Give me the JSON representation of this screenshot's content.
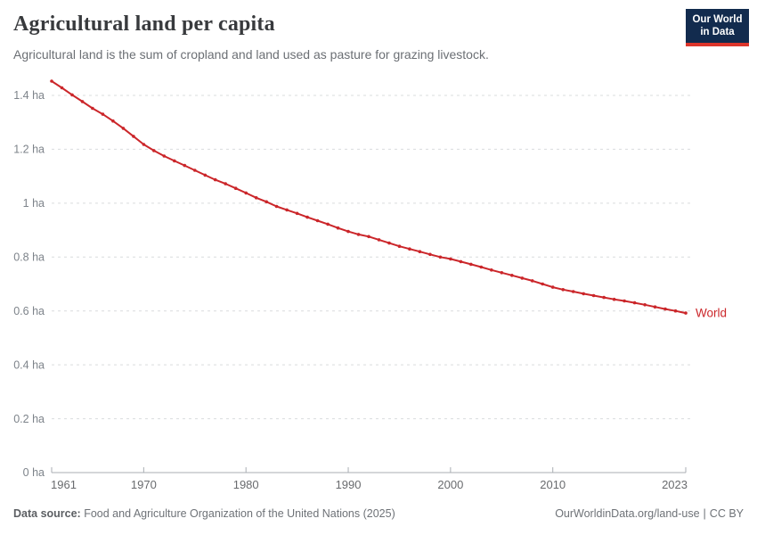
{
  "header": {
    "title": "Agricultural land per capita",
    "subtitle": "Agricultural land is the sum of cropland and land used as pasture for grazing livestock."
  },
  "logo": {
    "line1": "Our World",
    "line2": "in Data"
  },
  "chart_data": {
    "type": "line",
    "title": "Agricultural land per capita",
    "xlabel": "",
    "ylabel": "",
    "xlim": [
      1961,
      2023
    ],
    "ylim": [
      0,
      1.45
    ],
    "grid": "horizontal-dashed",
    "legend_position": "end-of-line-label",
    "yticks": [
      0,
      0.2,
      0.4,
      0.6,
      0.8,
      1,
      1.2,
      1.4
    ],
    "ytick_labels": [
      "0 ha",
      "0.2 ha",
      "0.4 ha",
      "0.6 ha",
      "0.8 ha",
      "1 ha",
      "1.2 ha",
      "1.4 ha"
    ],
    "xticks": [
      1961,
      1970,
      1980,
      1990,
      2000,
      2010,
      2023
    ],
    "xtick_labels": [
      "1961",
      "1970",
      "1980",
      "1990",
      "2000",
      "2010",
      "2023"
    ],
    "x": [
      1961,
      1962,
      1963,
      1964,
      1965,
      1966,
      1967,
      1968,
      1969,
      1970,
      1971,
      1972,
      1973,
      1974,
      1975,
      1976,
      1977,
      1978,
      1979,
      1980,
      1981,
      1982,
      1983,
      1984,
      1985,
      1986,
      1987,
      1988,
      1989,
      1990,
      1991,
      1992,
      1993,
      1994,
      1995,
      1996,
      1997,
      1998,
      1999,
      2000,
      2001,
      2002,
      2003,
      2004,
      2005,
      2006,
      2007,
      2008,
      2009,
      2010,
      2011,
      2012,
      2013,
      2014,
      2015,
      2016,
      2017,
      2018,
      2019,
      2020,
      2021,
      2022,
      2023
    ],
    "series": [
      {
        "name": "World",
        "color": "#cb262a",
        "values": [
          1.453,
          1.428,
          1.402,
          1.377,
          1.352,
          1.33,
          1.305,
          1.278,
          1.248,
          1.218,
          1.195,
          1.175,
          1.157,
          1.14,
          1.122,
          1.104,
          1.087,
          1.072,
          1.055,
          1.038,
          1.02,
          1.005,
          0.988,
          0.975,
          0.962,
          0.948,
          0.935,
          0.922,
          0.908,
          0.895,
          0.884,
          0.876,
          0.864,
          0.852,
          0.84,
          0.83,
          0.82,
          0.81,
          0.8,
          0.793,
          0.783,
          0.773,
          0.763,
          0.752,
          0.742,
          0.732,
          0.722,
          0.712,
          0.7,
          0.688,
          0.679,
          0.672,
          0.664,
          0.657,
          0.65,
          0.643,
          0.637,
          0.63,
          0.623,
          0.615,
          0.607,
          0.6,
          0.592
        ]
      }
    ]
  },
  "footer": {
    "source_label": "Data source:",
    "source_text": "Food and Agriculture Organization of the United Nations (2025)",
    "link": "OurWorldinData.org/land-use",
    "separator": "|",
    "license": "CC BY"
  },
  "colors": {
    "line": "#cb262a",
    "title_text": "#383a3d",
    "subtitle_text": "#6b6f74",
    "tick_text": "#7d838a",
    "gridline": "#d9dcde",
    "axis": "#a9aeb3",
    "logo_bg": "#122b4e",
    "logo_stripe": "#dc352b"
  }
}
